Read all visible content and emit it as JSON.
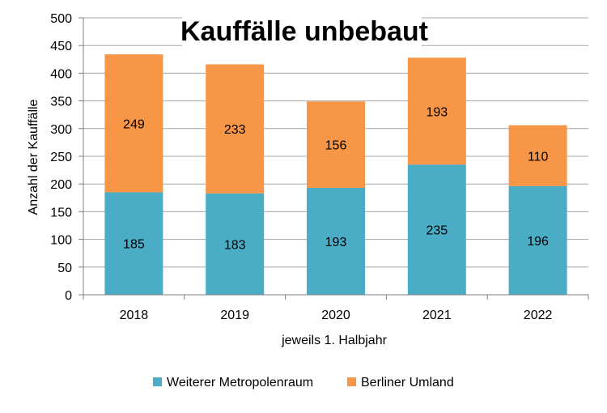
{
  "chart_data": {
    "type": "bar",
    "stacked": true,
    "title": "Kauffälle unbebaut",
    "xlabel": "jeweils 1. Halbjahr",
    "ylabel": "Anzahl der Kauffälle",
    "categories": [
      "2018",
      "2019",
      "2020",
      "2021",
      "2022"
    ],
    "series": [
      {
        "name": "Weiterer Metropolenraum",
        "values": [
          185,
          183,
          193,
          235,
          196
        ],
        "color": "#4BACC6"
      },
      {
        "name": "Berliner Umland",
        "values": [
          249,
          233,
          156,
          193,
          110
        ],
        "color": "#F79646"
      }
    ],
    "ylim": [
      0,
      500
    ],
    "yticks": [
      0,
      50,
      100,
      150,
      200,
      250,
      300,
      350,
      400,
      450,
      500
    ],
    "grid": true,
    "legend_position": "bottom",
    "data_labels": "inside"
  }
}
